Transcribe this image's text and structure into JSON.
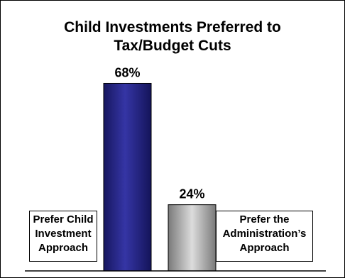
{
  "chart_data": {
    "type": "bar",
    "title_lines": [
      "Child Investments Preferred to",
      "Tax/Budget Cuts"
    ],
    "categories": [
      [
        "Prefer Child",
        "Investment",
        "Approach"
      ],
      [
        "Prefer the",
        "Administration’s",
        "Approach"
      ]
    ],
    "values": [
      68,
      24
    ],
    "value_labels": [
      "68%",
      "24%"
    ],
    "ylim": [
      0,
      100
    ],
    "colors": [
      "#2b2b8f",
      "#a6a6a6"
    ],
    "grid": false,
    "legend": "none"
  }
}
